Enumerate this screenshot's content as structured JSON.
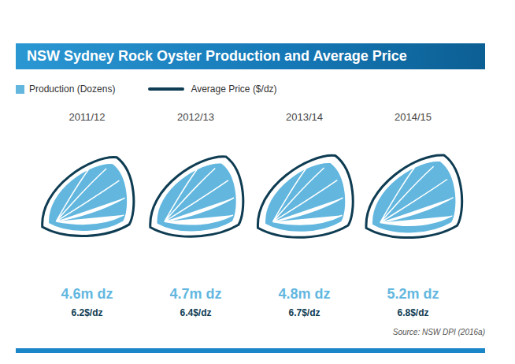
{
  "chart_data": {
    "type": "pictograph",
    "title": "NSW Sydney Rock Oyster Production and Average Price",
    "categories": [
      "2011/12",
      "2012/13",
      "2013/14",
      "2014/15"
    ],
    "series": [
      {
        "name": "Production (Dozens)",
        "color": "#63b7df",
        "values": [
          4600000,
          4700000,
          4800000,
          5200000
        ],
        "value_labels": [
          "4.6m dz",
          "4.7m dz",
          "4.8m dz",
          "5.2m dz"
        ]
      },
      {
        "name": "Average Price ($/dz)",
        "color": "#0e3c52",
        "values": [
          6.2,
          6.4,
          6.7,
          6.8
        ],
        "value_labels": [
          "6.2$/dz",
          "6.4$/dz",
          "6.7$/dz",
          "6.8$/dz"
        ]
      }
    ],
    "data_labels": true,
    "legend": "top-left",
    "source": "Source: NSW DPI (2016a)"
  }
}
